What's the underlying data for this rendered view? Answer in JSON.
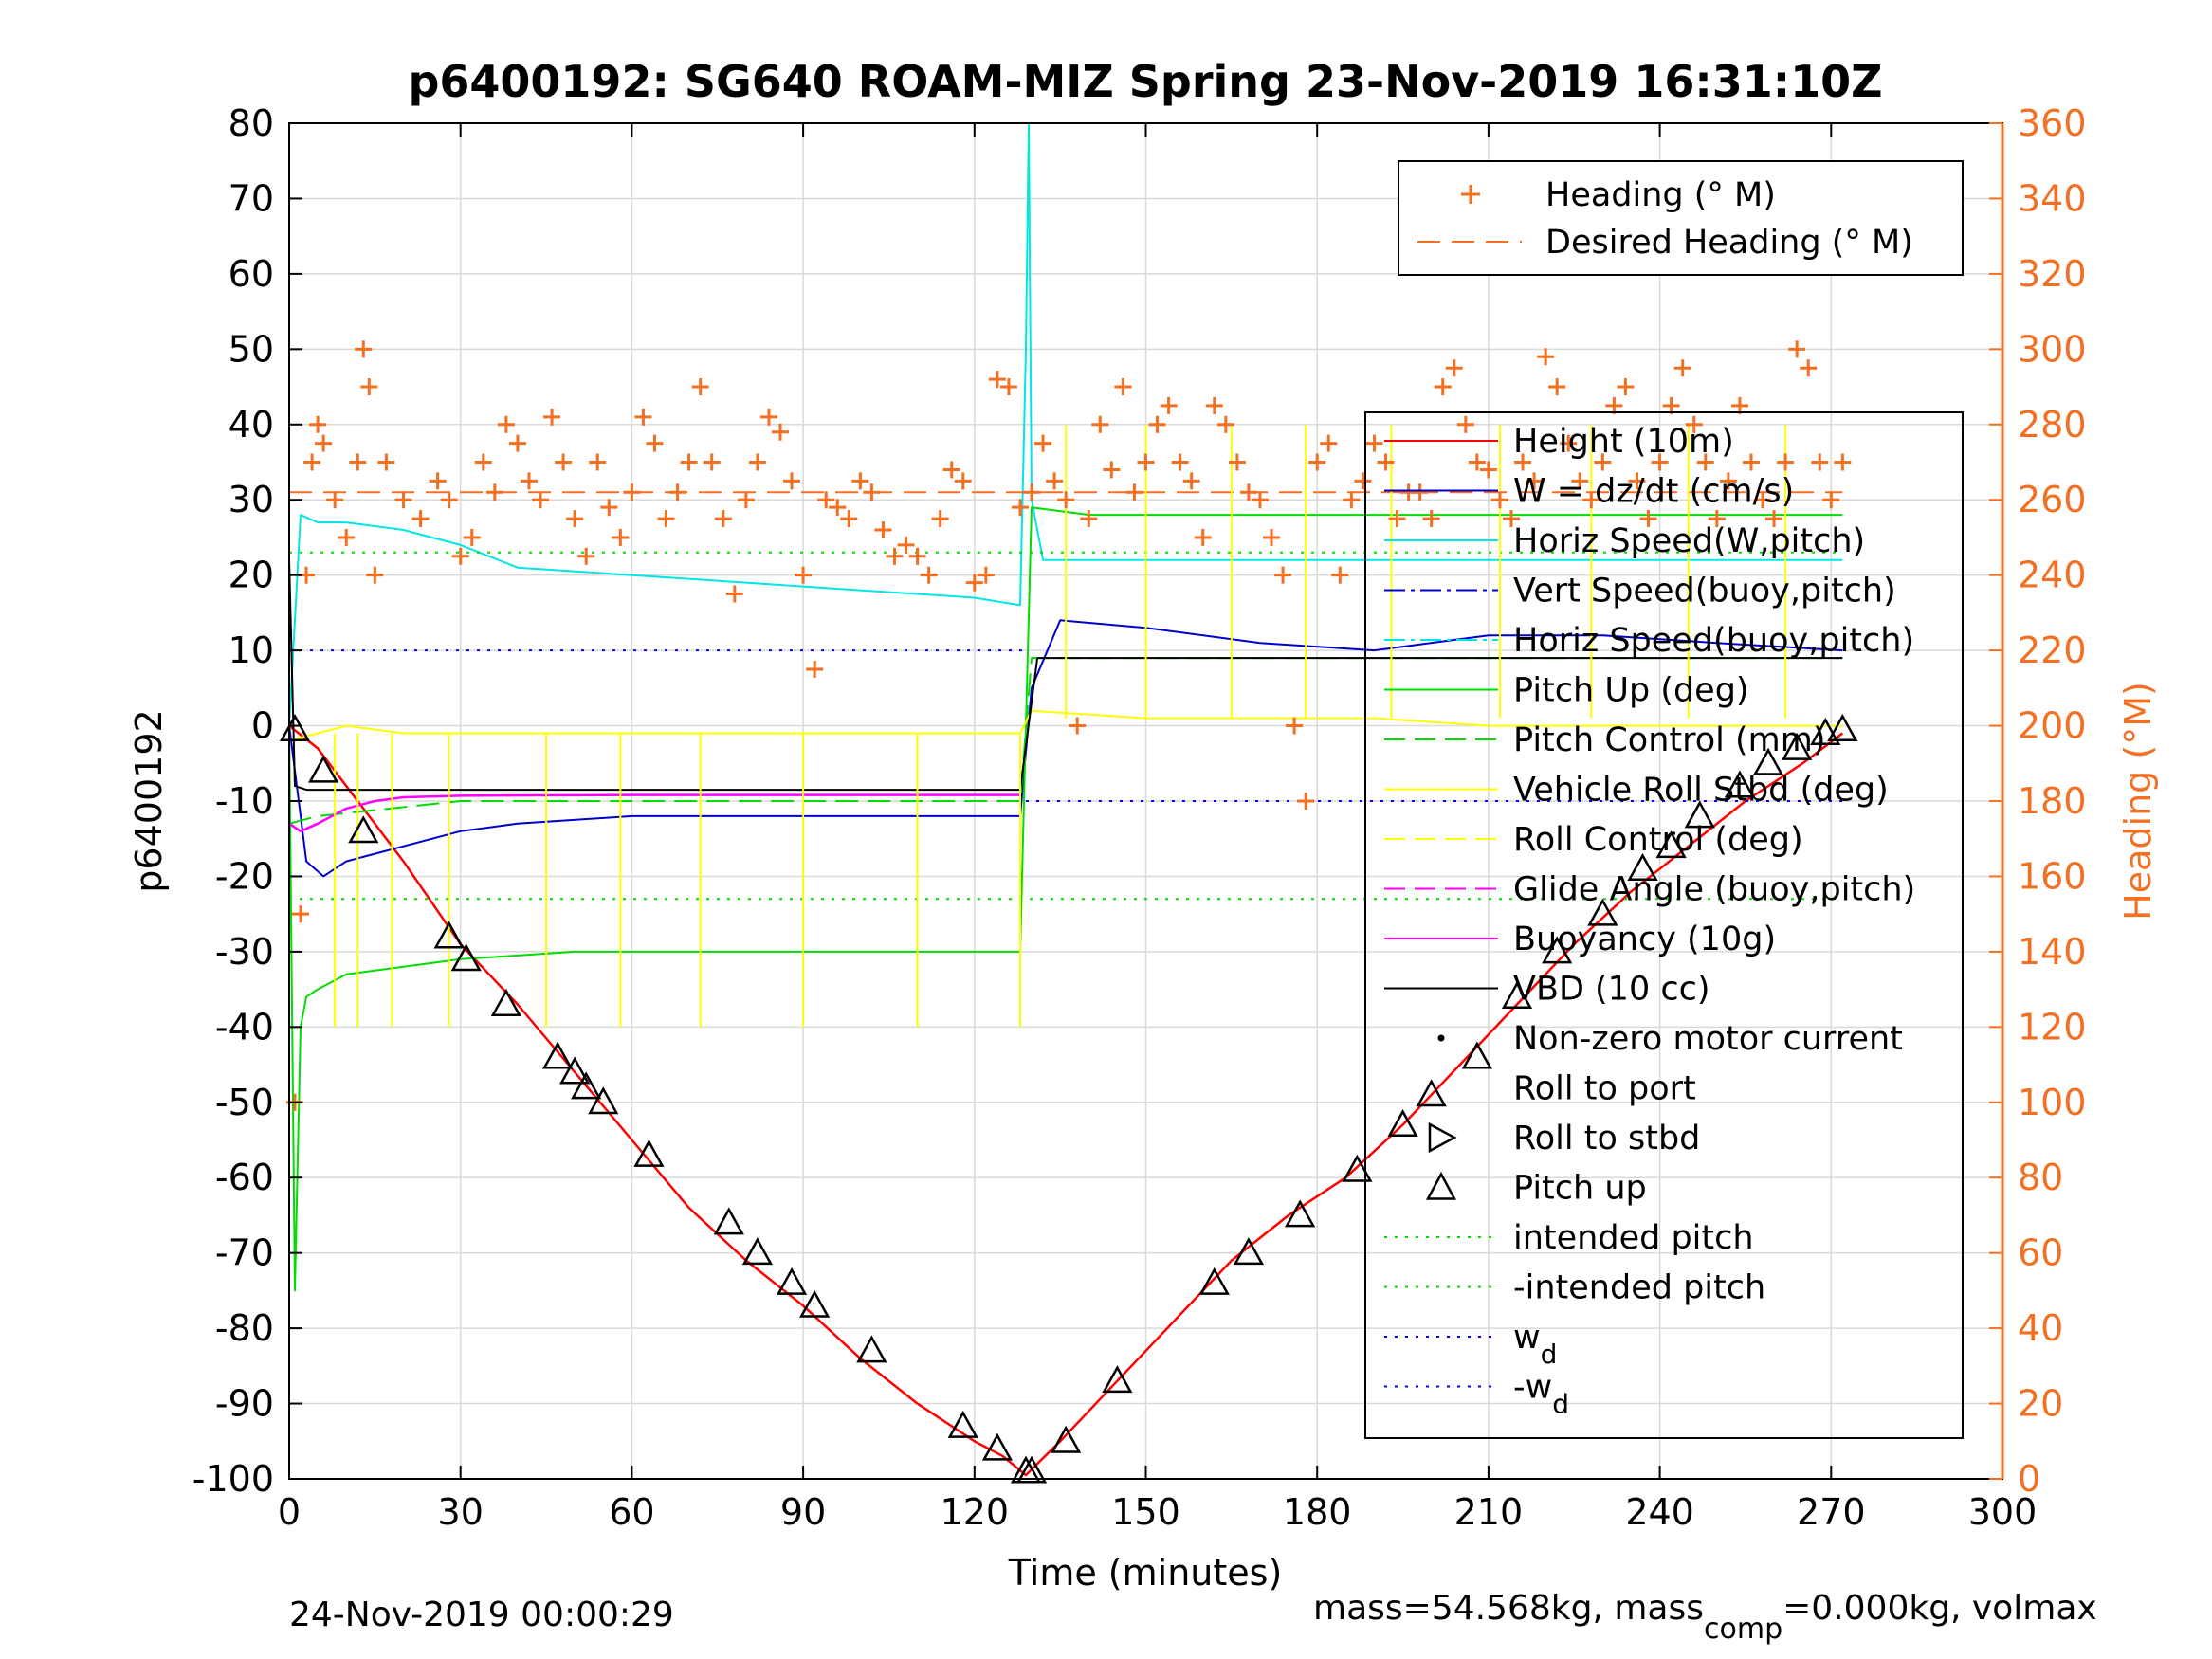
{
  "chart_data": {
    "type": "line",
    "title": "p6400192: SG640 ROAM-MIZ Spring 23-Nov-2019 16:31:10Z",
    "xlabel": "Time (minutes)",
    "ylabel": "p6400192",
    "y2label": "Heading (°M)",
    "xlim": [
      0,
      300
    ],
    "ylim": [
      -100,
      80
    ],
    "y2lim": [
      0,
      360
    ],
    "xticks": [
      "0",
      "30",
      "60",
      "90",
      "120",
      "150",
      "180",
      "210",
      "240",
      "270",
      "300"
    ],
    "yticks": [
      "80",
      "70",
      "60",
      "50",
      "40",
      "30",
      "20",
      "10",
      "0",
      "-10",
      "-20",
      "-30",
      "-40",
      "-50",
      "-60",
      "-70",
      "-80",
      "-90",
      "-100"
    ],
    "y2ticks": [
      "360",
      "340",
      "320",
      "300",
      "280",
      "260",
      "240",
      "220",
      "200",
      "180",
      "160",
      "140",
      "120",
      "100",
      "80",
      "60",
      "40",
      "20",
      "0"
    ],
    "grid": true,
    "colors": {
      "orange": "#f36f21",
      "red": "#ff0000",
      "blue": "#0000cc",
      "cyan": "#00e5e5",
      "green": "#00dd00",
      "yellow": "#ffff00",
      "magenta": "#ff00ff",
      "black": "#000000"
    },
    "legend_heading": [
      {
        "label": "Heading (° M)",
        "style": "plus",
        "color": "#f36f21"
      },
      {
        "label": "Desired Heading (° M)",
        "style": "dash",
        "color": "#f36f21"
      }
    ],
    "legend_main": [
      {
        "label": "Height (10m)",
        "style": "line",
        "color": "#ff0000"
      },
      {
        "label": "W = dz/dt (cm/s)",
        "style": "line",
        "color": "#0000cc"
      },
      {
        "label": "Horiz Speed(W,pitch)",
        "style": "line",
        "color": "#00e5e5"
      },
      {
        "label": "Vert Speed(buoy,pitch)",
        "style": "dashdot",
        "color": "#0000cc"
      },
      {
        "label": "Horiz Speed(buoy,pitch)",
        "style": "dashdot",
        "color": "#00e5e5"
      },
      {
        "label": "Pitch Up (deg)",
        "style": "line",
        "color": "#00dd00"
      },
      {
        "label": "Pitch Control (mm)",
        "style": "dash",
        "color": "#00dd00"
      },
      {
        "label": "Vehicle Roll Stbd (deg)",
        "style": "line",
        "color": "#ffff00"
      },
      {
        "label": "Roll Control (deg)",
        "style": "dash",
        "color": "#ffff00"
      },
      {
        "label": "Glide Angle (buoy,pitch)",
        "style": "dash",
        "color": "#ff00ff"
      },
      {
        "label": "Buoyancy (10g)",
        "style": "line",
        "color": "#ff00ff"
      },
      {
        "label": "VBD (10 cc)",
        "style": "line",
        "color": "#000000"
      },
      {
        "label": "Non-zero motor current",
        "style": "dot",
        "color": "#000000"
      },
      {
        "label": "Roll to port",
        "style": "none",
        "color": "#000000"
      },
      {
        "label": "Roll to stbd",
        "style": "tri-right",
        "color": "#000000"
      },
      {
        "label": "Pitch up",
        "style": "tri-up",
        "color": "#000000"
      },
      {
        "label": "intended pitch",
        "style": "dotted",
        "color": "#00dd00"
      },
      {
        "label": "-intended pitch",
        "style": "dotted",
        "color": "#00dd00"
      },
      {
        "label": "w",
        "sub": "d",
        "style": "dotted",
        "color": "#0000ff"
      },
      {
        "label": "-w",
        "sub": "d",
        "style": "dotted",
        "color": "#0000ff"
      }
    ],
    "series": [
      {
        "name": "Height (10m)",
        "x": [
          0,
          5,
          10,
          20,
          30,
          40,
          50,
          60,
          70,
          80,
          90,
          100,
          110,
          120,
          125,
          129,
          135,
          145,
          155,
          165,
          175,
          185,
          195,
          205,
          215,
          225,
          235,
          245,
          255,
          265,
          272
        ],
        "y": [
          0,
          -3,
          -8,
          -18,
          -29,
          -37,
          -46,
          -55,
          -64,
          -71,
          -77,
          -84,
          -90,
          -95,
          -97,
          -99.5,
          -95,
          -87,
          -79,
          -71,
          -65,
          -60,
          -53,
          -45,
          -37,
          -29,
          -22,
          -16,
          -10,
          -5,
          -1
        ]
      },
      {
        "name": "W = dz/dt (cm/s)",
        "x": [
          0,
          3,
          6,
          10,
          15,
          20,
          30,
          40,
          60,
          80,
          100,
          120,
          128,
          130,
          135,
          150,
          170,
          190,
          210,
          230,
          250,
          272
        ],
        "y": [
          0,
          -18,
          -20,
          -18,
          -17,
          -16,
          -14,
          -13,
          -12,
          -12,
          -12,
          -12,
          -12,
          5,
          14,
          13,
          11,
          10,
          12,
          12,
          11,
          10
        ]
      },
      {
        "name": "Horiz Speed(W,pitch)",
        "x": [
          0,
          2,
          5,
          10,
          20,
          30,
          40,
          60,
          80,
          100,
          120,
          128,
          129,
          129.5,
          130,
          132,
          150,
          200,
          272
        ],
        "y": [
          0,
          28,
          27,
          27,
          26,
          24,
          21,
          20,
          19,
          18,
          17,
          16,
          50,
          80,
          30,
          22,
          22,
          22,
          22
        ]
      },
      {
        "name": "Pitch Up (deg)",
        "x": [
          0,
          1,
          2,
          3,
          5,
          10,
          20,
          30,
          50,
          70,
          90,
          110,
          128,
          129,
          130,
          140,
          160,
          190,
          220,
          250,
          272
        ],
        "y": [
          0,
          -75,
          -40,
          -36,
          -35,
          -33,
          -32,
          -31,
          -30,
          -30,
          -30,
          -30,
          -30,
          0,
          29,
          28,
          28,
          28,
          28,
          28,
          28
        ]
      },
      {
        "name": "Pitch Control (mm)",
        "x": [
          0,
          5,
          30,
          60,
          90,
          120,
          128,
          130,
          160,
          200,
          272
        ],
        "y": [
          -13,
          -12,
          -10,
          -10,
          -10,
          -10,
          -10,
          9,
          9,
          9,
          9
        ]
      },
      {
        "name": "Vehicle Roll Stbd (deg)",
        "x": [
          0,
          10,
          20,
          40,
          60,
          80,
          100,
          120,
          128,
          130,
          150,
          170,
          190,
          210,
          230,
          250,
          272
        ],
        "y": [
          -2,
          0,
          -1,
          -1,
          -1,
          -1,
          -1,
          -1,
          -1,
          2,
          1,
          1,
          1,
          0,
          0,
          0,
          0
        ]
      },
      {
        "name": "Buoyancy (10g)",
        "x": [
          0,
          2,
          5,
          10,
          15,
          20,
          30,
          60,
          90,
          128
        ],
        "y": [
          -13,
          -14,
          -13,
          -11,
          -10,
          -9.5,
          -9.3,
          -9.2,
          -9.2,
          -9.2
        ]
      },
      {
        "name": "VBD (10 cc)",
        "x": [
          0,
          1,
          3,
          128,
          131,
          272
        ],
        "y": [
          22,
          -8,
          -8.5,
          -8.5,
          9,
          9
        ]
      },
      {
        "name": "intended pitch",
        "x": [
          0,
          272
        ],
        "y": [
          23,
          23
        ]
      },
      {
        "name": "-intended pitch",
        "x": [
          0,
          272
        ],
        "y": [
          -23,
          -23
        ]
      },
      {
        "name": "wd",
        "x": [
          0,
          129
        ],
        "y": [
          10,
          10
        ]
      },
      {
        "name": "-wd",
        "x": [
          129,
          272
        ],
        "y": [
          -10,
          -10
        ]
      },
      {
        "name": "Desired Heading (° M)",
        "x": [
          0,
          272
        ],
        "y2": [
          262,
          262
        ]
      },
      {
        "name": "Pitch up",
        "x": [
          1,
          6,
          13,
          28,
          31,
          38,
          47,
          50,
          52,
          55,
          63,
          77,
          82,
          88,
          92,
          102,
          118,
          124,
          129,
          130,
          136,
          145,
          162,
          168,
          177,
          187,
          195,
          200,
          208,
          215,
          222,
          230,
          237,
          242,
          247,
          254,
          259,
          264,
          269,
          272
        ],
        "y": [
          -0.5,
          -6,
          -14,
          -28,
          -31,
          -37,
          -44,
          -46,
          -48,
          -50,
          -57,
          -66,
          -70,
          -74,
          -77,
          -83,
          -93,
          -96,
          -99,
          -99,
          -95,
          -87,
          -74,
          -70,
          -65,
          -59,
          -53,
          -49,
          -44,
          -36,
          -30,
          -25,
          -19,
          -16,
          -12,
          -8,
          -5,
          -3,
          -1,
          -0.5
        ]
      },
      {
        "name": "Heading (° M)",
        "x": [
          1,
          2,
          3,
          4,
          5,
          6,
          8,
          10,
          12,
          13,
          14,
          15,
          17,
          20,
          23,
          26,
          28,
          30,
          32,
          34,
          36,
          38,
          40,
          42,
          44,
          46,
          48,
          50,
          52,
          54,
          56,
          58,
          60,
          62,
          64,
          66,
          68,
          70,
          72,
          74,
          76,
          78,
          80,
          82,
          84,
          86,
          88,
          90,
          92,
          94,
          96,
          98,
          100,
          102,
          104,
          106,
          108,
          110,
          112,
          114,
          116,
          118,
          120,
          122,
          124,
          126,
          128,
          130,
          132,
          134,
          136,
          138,
          140,
          142,
          144,
          146,
          148,
          150,
          152,
          154,
          156,
          158,
          160,
          162,
          164,
          166,
          168,
          170,
          172,
          174,
          176,
          178,
          180,
          182,
          184,
          186,
          188,
          190,
          192,
          194,
          196,
          198,
          200,
          202,
          204,
          206,
          208,
          210,
          212,
          214,
          216,
          218,
          220,
          222,
          224,
          226,
          228,
          230,
          232,
          234,
          236,
          238,
          240,
          242,
          244,
          246,
          248,
          250,
          252,
          254,
          256,
          258,
          260,
          262,
          264,
          266,
          268,
          270,
          272
        ],
        "y2": [
          100,
          150,
          240,
          270,
          280,
          275,
          260,
          250,
          270,
          300,
          290,
          240,
          270,
          260,
          255,
          265,
          260,
          245,
          250,
          270,
          262,
          280,
          275,
          265,
          260,
          282,
          270,
          255,
          245,
          270,
          258,
          250,
          262,
          282,
          275,
          255,
          262,
          270,
          290,
          270,
          255,
          235,
          260,
          270,
          282,
          278,
          265,
          240,
          215,
          260,
          258,
          255,
          265,
          262,
          252,
          245,
          248,
          245,
          240,
          255,
          268,
          265,
          238,
          240,
          292,
          290,
          258,
          262,
          275,
          265,
          260,
          200,
          255,
          280,
          268,
          290,
          262,
          270,
          280,
          285,
          270,
          265,
          250,
          285,
          280,
          270,
          262,
          260,
          250,
          240,
          200,
          180,
          270,
          275,
          240,
          260,
          265,
          275,
          270,
          255,
          262,
          262,
          255,
          290,
          295,
          280,
          270,
          268,
          260,
          255,
          270,
          265,
          298,
          290,
          275,
          265,
          260,
          270,
          285,
          290,
          265,
          255,
          270,
          285,
          295,
          280,
          270,
          255,
          265,
          285,
          270,
          260,
          255,
          270,
          300,
          295,
          270,
          260,
          270
        ]
      }
    ]
  },
  "footer": {
    "date": "24-Nov-2019 00:00:29",
    "mass_prefix": "mass=54.568kg, mass",
    "mass_sub": "comp",
    "mass_suffix": "=0.000kg, volmax"
  }
}
